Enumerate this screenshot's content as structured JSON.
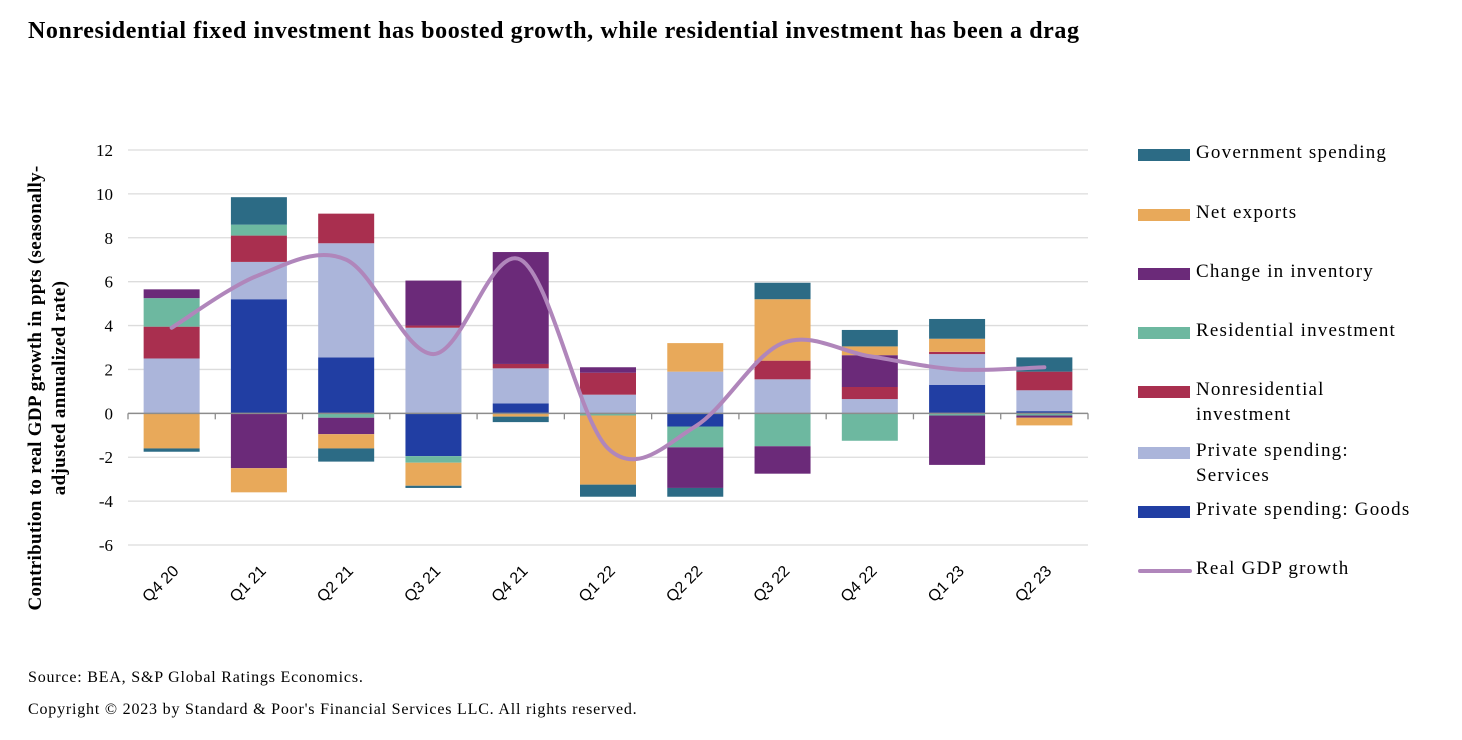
{
  "title": "Nonresidential fixed investment has boosted growth, while residential investment has been a drag",
  "footer": {
    "source": "Source: BEA, S&P Global Ratings Economics.",
    "copyright": "Copyright © 2023 by Standard & Poor's Financial Services LLC. All rights reserved."
  },
  "chart_data": {
    "type": "bar",
    "stacked": true,
    "title": "Nonresidential fixed investment has boosted growth, while residential investment has been a drag",
    "xlabel": "",
    "ylabel": "Contribution to real GDP growth in ppts (seasonally-adjusted annualized rate)",
    "ylim": [
      -6,
      12
    ],
    "yticks": [
      12,
      10,
      8,
      6,
      4,
      2,
      0,
      -2,
      -4,
      -6
    ],
    "grid": true,
    "legend_position": "right",
    "categories": [
      "Q4 20",
      "Q1 21",
      "Q2 21",
      "Q3 21",
      "Q4 21",
      "Q1 22",
      "Q2 22",
      "Q3 22",
      "Q4 22",
      "Q1 23",
      "Q2 23"
    ],
    "series": [
      {
        "name": "Private spending: Goods",
        "color": "#213ea3",
        "values": [
          0.0,
          5.2,
          2.55,
          -1.95,
          0.45,
          0.0,
          -0.6,
          0.0,
          0.0,
          1.3,
          0.1
        ]
      },
      {
        "name": "Private spending: Services",
        "color": "#abb5da",
        "values": [
          2.5,
          1.7,
          5.2,
          3.9,
          1.6,
          0.85,
          1.9,
          1.55,
          0.65,
          1.4,
          0.95
        ]
      },
      {
        "name": "Nonresidential investment",
        "color": "#a92f4f",
        "values": [
          1.45,
          1.2,
          1.35,
          0.1,
          0.2,
          1.0,
          0.0,
          0.85,
          0.55,
          0.1,
          0.85
        ]
      },
      {
        "name": "Residential investment",
        "color": "#6db8a0",
        "values": [
          1.3,
          0.5,
          -0.2,
          -0.3,
          0.0,
          -0.1,
          -0.95,
          -1.5,
          -1.25,
          -0.1,
          -0.1
        ]
      },
      {
        "name": "Change in inventory",
        "color": "#6b2a79",
        "values": [
          0.4,
          -2.5,
          -0.75,
          2.05,
          5.1,
          0.25,
          -1.85,
          -1.25,
          1.45,
          -2.25,
          -0.1
        ]
      },
      {
        "name": "Net exports",
        "color": "#e8a95a",
        "values": [
          -1.6,
          -1.1,
          -0.65,
          -1.05,
          -0.15,
          -3.15,
          1.3,
          2.8,
          0.4,
          0.6,
          -0.35
        ]
      },
      {
        "name": "Government spending",
        "color": "#2c6b85",
        "values": [
          -0.15,
          1.25,
          -0.6,
          -0.1,
          -0.25,
          -0.55,
          -0.4,
          0.75,
          0.75,
          0.9,
          0.65
        ]
      }
    ],
    "line": {
      "name": "Real GDP growth",
      "color": "#b086bb",
      "values": [
        3.9,
        6.3,
        7.0,
        2.7,
        7.0,
        -1.6,
        -0.6,
        3.2,
        2.6,
        2.0,
        2.1
      ]
    },
    "legend": [
      {
        "label": "Government spending",
        "color": "#2c6b85",
        "kind": "bar"
      },
      {
        "label": "Net exports",
        "color": "#e8a95a",
        "kind": "bar"
      },
      {
        "label": "Change in inventory",
        "color": "#6b2a79",
        "kind": "bar"
      },
      {
        "label": "Residential investment",
        "color": "#6db8a0",
        "kind": "bar"
      },
      {
        "label": "Nonresidential investment",
        "color": "#a92f4f",
        "kind": "bar"
      },
      {
        "label": "Private spending: Services",
        "color": "#abb5da",
        "kind": "bar"
      },
      {
        "label": "Private spending: Goods",
        "color": "#213ea3",
        "kind": "bar"
      },
      {
        "label": "Real GDP growth",
        "color": "#b086bb",
        "kind": "line"
      }
    ]
  }
}
